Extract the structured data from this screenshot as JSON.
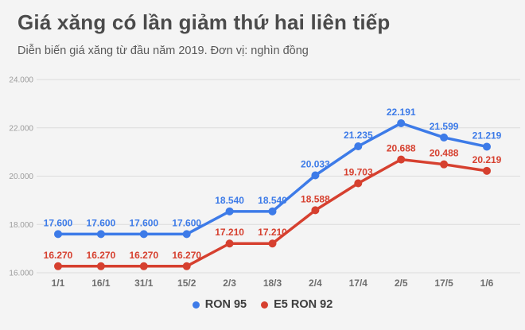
{
  "header": {
    "title": "Giá xăng có lần giảm thứ hai liên tiếp",
    "subtitle": "Diễn biến giá xăng từ đầu năm 2019. Đơn vị: nghìn đồng"
  },
  "colors": {
    "background": "#f4f4f4",
    "ron95": "#3d7be8",
    "e5ron92": "#d6402f",
    "gridline": "#dcdcdc"
  },
  "legend": {
    "items": [
      {
        "label": "RON 95",
        "color": "#3d7be8"
      },
      {
        "label": "E5 RON 92",
        "color": "#d6402f"
      }
    ]
  },
  "chart_data": {
    "type": "line",
    "title": "Giá xăng có lần giảm thứ hai liên tiếp",
    "subtitle": "Diễn biến giá xăng từ đầu năm 2019. Đơn vị: nghìn đồng",
    "unit": "nghìn đồng",
    "categories": [
      "1/1",
      "16/1",
      "31/1",
      "15/2",
      "2/3",
      "18/3",
      "2/4",
      "17/4",
      "2/5",
      "17/5",
      "1/6"
    ],
    "series": [
      {
        "name": "RON 95",
        "color": "#3d7be8",
        "values": [
          17600,
          17600,
          17600,
          17600,
          18540,
          18540,
          20033,
          21235,
          22191,
          21599,
          21219
        ],
        "labels": [
          "17.600",
          "17.600",
          "17.600",
          "17.600",
          "18.540",
          "18.540",
          "20.033",
          "21.235",
          "22.191",
          "21.599",
          "21.219"
        ]
      },
      {
        "name": "E5 RON 92",
        "color": "#d6402f",
        "values": [
          16270,
          16270,
          16270,
          16270,
          17210,
          17210,
          18588,
          19703,
          20688,
          20488,
          20219
        ],
        "labels": [
          "16.270",
          "16.270",
          "16.270",
          "16.270",
          "17.210",
          "17.210",
          "18.588",
          "19.703",
          "20.688",
          "20.488",
          "20.219"
        ]
      }
    ],
    "ylim": [
      16000,
      24000
    ],
    "yticks": {
      "values": [
        16000,
        18000,
        20000,
        22000,
        24000
      ],
      "labels": [
        "16.000",
        "18.000",
        "20.000",
        "22.000",
        "24.000"
      ]
    },
    "grid": true,
    "legend_position": "bottom"
  }
}
